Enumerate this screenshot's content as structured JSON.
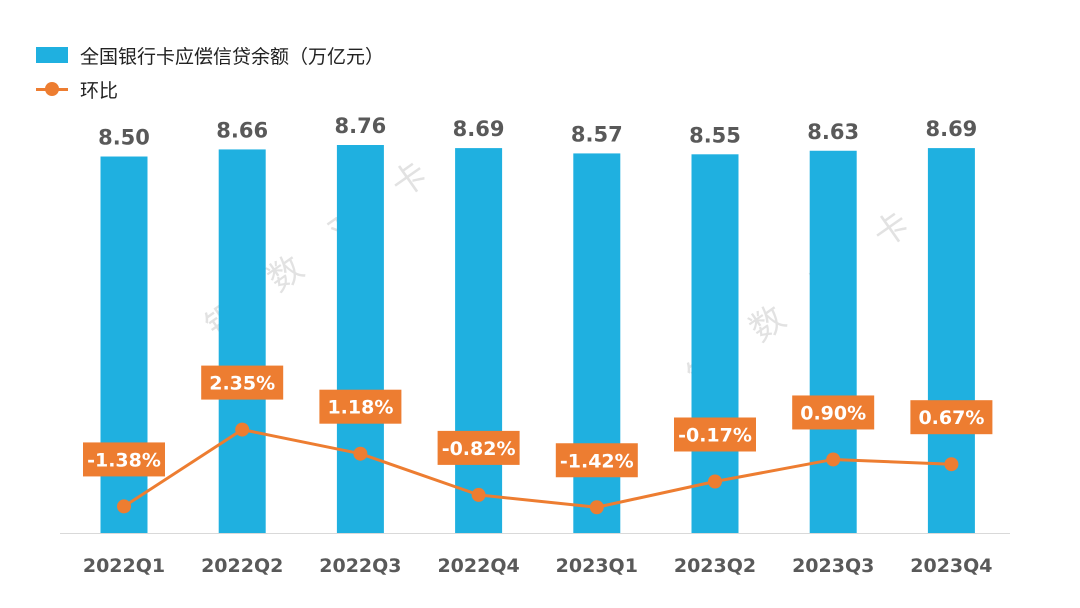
{
  "chart_data": {
    "type": "bar",
    "categories": [
      "2022Q1",
      "2022Q2",
      "2022Q3",
      "2022Q4",
      "2023Q1",
      "2023Q2",
      "2023Q3",
      "2023Q4"
    ],
    "series": [
      {
        "name": "全国银行卡应偿信贷余额（万亿元）",
        "type": "bar",
        "values": [
          8.5,
          8.66,
          8.76,
          8.69,
          8.57,
          8.55,
          8.63,
          8.69
        ],
        "labels": [
          "8.50",
          "8.66",
          "8.76",
          "8.69",
          "8.57",
          "8.55",
          "8.63",
          "8.69"
        ],
        "color": "#1fb0e0"
      },
      {
        "name": "环比",
        "type": "line",
        "values": [
          -1.38,
          2.35,
          1.18,
          -0.82,
          -1.42,
          -0.17,
          0.9,
          0.67
        ],
        "labels": [
          "-1.38%",
          "2.35%",
          "1.18%",
          "-0.82%",
          "-1.42%",
          "-0.17%",
          "0.90%",
          "0.67%"
        ],
        "unit": "%",
        "color": "#ed7d31"
      }
    ],
    "legend": "top-left",
    "grid": false,
    "watermark_text": [
      "银",
      "数",
      "观",
      "卡"
    ]
  }
}
